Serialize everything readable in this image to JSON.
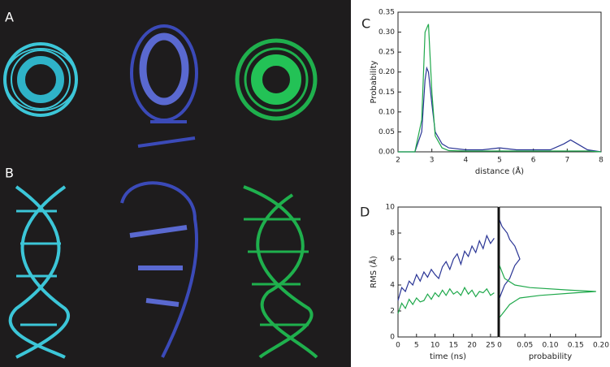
{
  "images": [
    {
      "label": "A"
    },
    {
      "label": "B"
    }
  ],
  "chart_data": [
    {
      "type": "line",
      "label": "C",
      "xlabel": "distance (Å)",
      "ylabel": "Probability",
      "x": [
        2.0,
        2.5,
        2.7,
        2.8,
        2.85,
        2.9,
        3.0,
        3.1,
        3.3,
        3.5,
        4.0,
        4.5,
        5.0,
        5.5,
        6.0,
        6.5,
        6.9,
        7.1,
        7.3,
        7.6,
        8.0
      ],
      "series": [
        {
          "color": "#2a3595",
          "values": [
            0,
            0,
            0.05,
            0.18,
            0.21,
            0.2,
            0.12,
            0.05,
            0.02,
            0.01,
            0.005,
            0.005,
            0.01,
            0.005,
            0.005,
            0.005,
            0.02,
            0.03,
            0.02,
            0.005,
            0
          ]
        },
        {
          "color": "#1fa84b",
          "values": [
            0,
            0,
            0.08,
            0.3,
            0.31,
            0.32,
            0.15,
            0.04,
            0.01,
            0.003,
            0.002,
            0.002,
            0.002,
            0.002,
            0.002,
            0.002,
            0.002,
            0.002,
            0.002,
            0.002,
            0
          ]
        }
      ],
      "xlim": [
        2,
        8
      ],
      "xticks": [
        2,
        3,
        4,
        5,
        6,
        7,
        8
      ],
      "ylim": [
        0,
        0.35
      ],
      "yticks": [
        {
          "value": 0,
          "label": "0.00"
        },
        0.05,
        {
          "value": 0.1,
          "label": "0.10"
        },
        0.15,
        {
          "value": 0.2,
          "label": "0.20"
        },
        0.25,
        {
          "value": 0.3,
          "label": "0.30"
        },
        0.35
      ]
    },
    {
      "type": "line",
      "label": "D",
      "xlabel": "time (ns)",
      "ylabel": "RMS (Å)",
      "x": [
        0,
        1,
        2,
        3,
        4,
        5,
        6,
        7,
        8,
        9,
        10,
        11,
        12,
        13,
        14,
        15,
        16,
        17,
        18,
        19,
        20,
        21,
        22,
        23,
        24,
        25,
        26
      ],
      "series": [
        {
          "color": "#2a3595",
          "values": [
            2.8,
            3.8,
            3.5,
            4.3,
            4.0,
            4.8,
            4.3,
            5.0,
            4.6,
            5.2,
            4.8,
            4.5,
            5.4,
            5.8,
            5.2,
            6.0,
            6.4,
            5.6,
            6.6,
            6.2,
            7.0,
            6.5,
            7.4,
            6.8,
            7.8,
            7.2,
            7.6
          ]
        },
        {
          "color": "#1fa84b",
          "values": [
            1.8,
            2.6,
            2.2,
            2.9,
            2.5,
            3.0,
            2.7,
            2.8,
            3.3,
            2.9,
            3.4,
            3.1,
            3.6,
            3.2,
            3.7,
            3.3,
            3.5,
            3.2,
            3.8,
            3.3,
            3.6,
            3.1,
            3.5,
            3.4,
            3.7,
            3.2,
            3.4
          ]
        }
      ],
      "xlim": [
        0,
        27
      ],
      "xticks": [
        0,
        5,
        10,
        15,
        20,
        25
      ],
      "ylim": [
        0,
        10
      ],
      "yticks": [
        0,
        2,
        4,
        6,
        8,
        10
      ]
    },
    {
      "type": "distribution",
      "xlabel": "probability",
      "series": [
        {
          "color": "#2a3595",
          "rms": [
            3,
            3.5,
            4,
            4.5,
            5,
            5.5,
            6,
            6.5,
            7,
            7.5,
            8,
            8.5,
            9
          ],
          "values": [
            0,
            0.005,
            0.01,
            0.02,
            0.025,
            0.03,
            0.04,
            0.035,
            0.03,
            0.02,
            0.015,
            0.005,
            0
          ]
        },
        {
          "color": "#1fa84b",
          "rms": [
            1.5,
            2,
            2.5,
            3,
            3.2,
            3.4,
            3.5,
            3.6,
            3.8,
            4,
            4.5,
            5,
            5.5
          ],
          "values": [
            0,
            0.01,
            0.02,
            0.04,
            0.08,
            0.15,
            0.19,
            0.14,
            0.06,
            0.03,
            0.01,
            0.005,
            0
          ]
        }
      ],
      "xlim": [
        0,
        0.2
      ],
      "xticks": [
        0,
        0.05,
        {
          "value": 0.1,
          "label": "0.10"
        },
        0.15,
        {
          "value": 0.2,
          "label": "0.20"
        }
      ],
      "ylim": [
        0,
        10
      ]
    }
  ]
}
